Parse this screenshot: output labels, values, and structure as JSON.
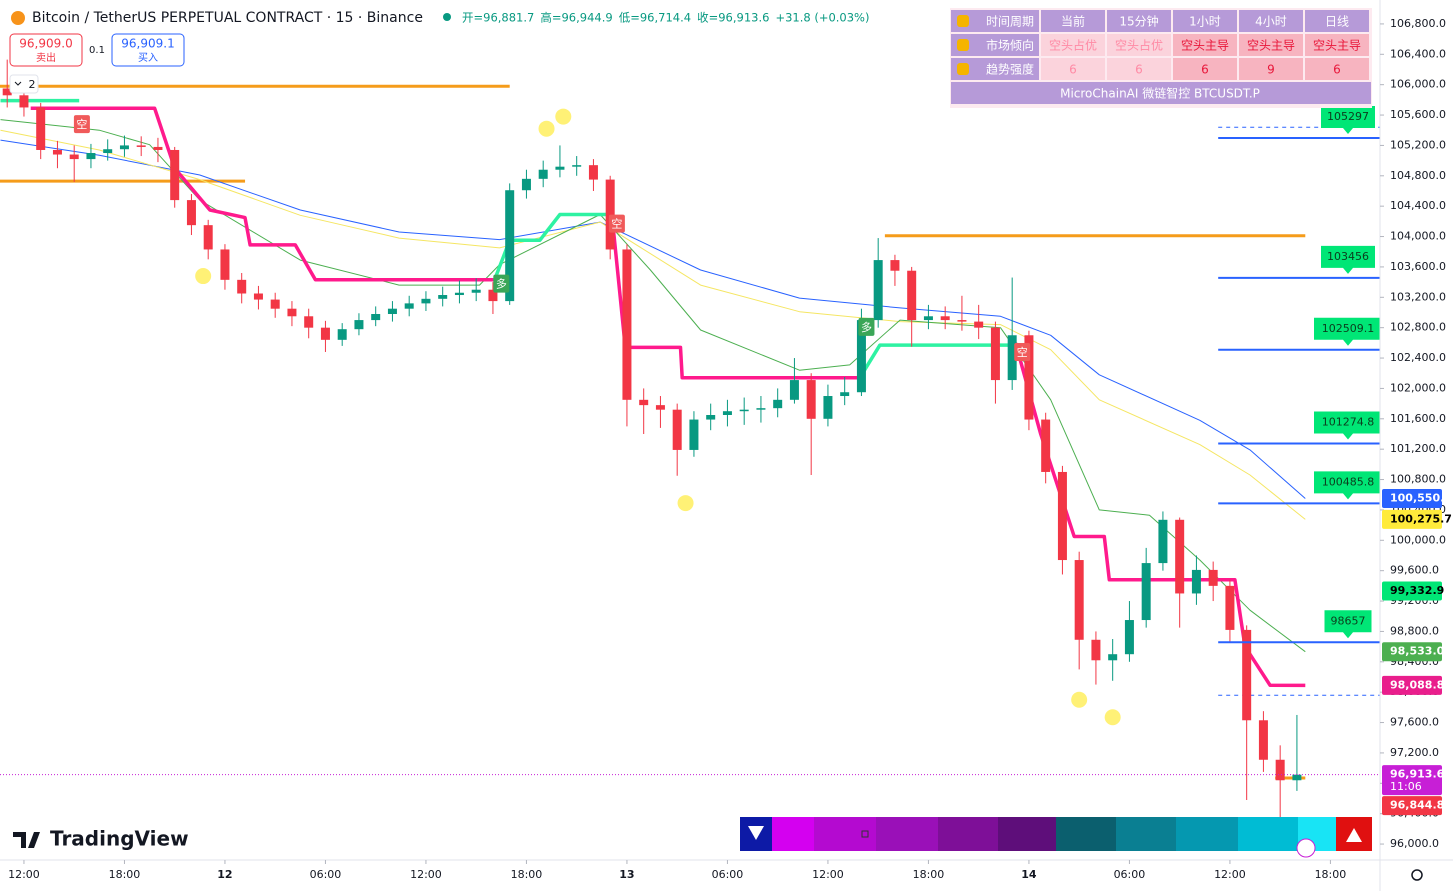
{
  "chart_data": {
    "type": "candlestick",
    "xlim": [
      -1.43,
      80.96
    ],
    "ylim": [
      95790,
      107115
    ],
    "xticks": [
      {
        "value": 0,
        "label": "12:00"
      },
      {
        "value": 6,
        "label": "18:00"
      },
      {
        "value": 12,
        "label": "12"
      },
      {
        "value": 18,
        "label": "06:00"
      },
      {
        "value": 24,
        "label": "12:00"
      },
      {
        "value": 30,
        "label": "18:00"
      },
      {
        "value": 36,
        "label": "13"
      },
      {
        "value": 42,
        "label": "06:00"
      },
      {
        "value": 48,
        "label": "12:00"
      },
      {
        "value": 54,
        "label": "18:00"
      },
      {
        "value": 60,
        "label": "14"
      },
      {
        "value": 66,
        "label": "06:00"
      },
      {
        "value": 72,
        "label": "12:00"
      },
      {
        "value": 78,
        "label": "18:00"
      }
    ],
    "yticks": [
      {
        "value": 96000,
        "label": "96,000.0"
      },
      {
        "value": 96400,
        "label": "96,400.0"
      },
      {
        "value": 96800,
        "label": "96,800.0"
      },
      {
        "value": 97200,
        "label": "97,200.0"
      },
      {
        "value": 97600,
        "label": "97,600.0"
      },
      {
        "value": 98000,
        "label": "98,000.0"
      },
      {
        "value": 98400,
        "label": "98,400.0"
      },
      {
        "value": 98800,
        "label": "98,800.0"
      },
      {
        "value": 99200,
        "label": "99,200.0"
      },
      {
        "value": 99600,
        "label": "99,600.0"
      },
      {
        "value": 100000,
        "label": "100,000.0"
      },
      {
        "value": 100400,
        "label": "100,400.0"
      },
      {
        "value": 100800,
        "label": "100,800.0"
      },
      {
        "value": 101200,
        "label": "101,200.0"
      },
      {
        "value": 101600,
        "label": "101,600.0"
      },
      {
        "value": 102000,
        "label": "102,000.0"
      },
      {
        "value": 102400,
        "label": "102,400.0"
      },
      {
        "value": 102800,
        "label": "102,800.0"
      },
      {
        "value": 103200,
        "label": "103,200.0"
      },
      {
        "value": 103600,
        "label": "103,600.0"
      },
      {
        "value": 104000,
        "label": "104,000.0"
      },
      {
        "value": 104400,
        "label": "104,400.0"
      },
      {
        "value": 104800,
        "label": "104,800.0"
      },
      {
        "value": 105200,
        "label": "105,200.0"
      },
      {
        "value": 105600,
        "label": "105,600.0"
      },
      {
        "value": 106000,
        "label": "106,000.0"
      },
      {
        "value": 106400,
        "label": "106,400.0"
      },
      {
        "value": 106800,
        "label": "106,800.0"
      }
    ],
    "up_color": "#089981",
    "down_color": "#f23645",
    "candles": {
      "x": [
        -1,
        0,
        1,
        2,
        3,
        4,
        5,
        6,
        7,
        8,
        9,
        10,
        11,
        12,
        13,
        14,
        15,
        16,
        17,
        18,
        19,
        20,
        21,
        22,
        23,
        24,
        25,
        26,
        27,
        28,
        29,
        30,
        31,
        32,
        33,
        34,
        35,
        36,
        37,
        38,
        39,
        40,
        41,
        42,
        43,
        44,
        45,
        46,
        47,
        48,
        49,
        50,
        51,
        52,
        53,
        54,
        55,
        56,
        57,
        58,
        59,
        60,
        61,
        62,
        63,
        64,
        65,
        66,
        67,
        68,
        69,
        70,
        71,
        72,
        73,
        74,
        75,
        76
      ],
      "open": [
        105950,
        105860,
        105700,
        105140,
        105080,
        105020,
        105100,
        105150,
        105200,
        105180,
        105140,
        104480,
        104150,
        103830,
        103430,
        103250,
        103170,
        103050,
        102950,
        102800,
        102640,
        102780,
        102900,
        102980,
        103050,
        103120,
        103180,
        103230,
        103260,
        103300,
        103150,
        104610,
        104760,
        104880,
        104920,
        104940,
        104750,
        103830,
        101850,
        101780,
        101720,
        101190,
        101590,
        101650,
        101700,
        101720,
        101740,
        101850,
        102110,
        101600,
        101900,
        101950,
        102900,
        103690,
        103550,
        102900,
        102950,
        102900,
        102880,
        102800,
        102110,
        102700,
        101590,
        100900,
        99740,
        98690,
        98420,
        98500,
        98950,
        99700,
        100270,
        99300,
        99610,
        99400,
        98820,
        97630,
        97110,
        96840
      ],
      "high": [
        106330,
        105950,
        105760,
        105260,
        105200,
        105220,
        105280,
        105330,
        105320,
        105300,
        105180,
        104560,
        104220,
        103900,
        103520,
        103350,
        103260,
        103150,
        103050,
        102890,
        102860,
        102990,
        103080,
        103150,
        103220,
        103280,
        103340,
        103420,
        103450,
        103400,
        104700,
        104880,
        105000,
        105200,
        105060,
        105020,
        104800,
        103900,
        102000,
        101900,
        101800,
        101700,
        101800,
        101850,
        101880,
        101900,
        102000,
        102400,
        102200,
        102050,
        102150,
        103050,
        103980,
        103760,
        103600,
        103100,
        103080,
        103220,
        103100,
        102880,
        103460,
        102760,
        101680,
        100980,
        99850,
        98800,
        98700,
        99200,
        99900,
        100380,
        100300,
        99800,
        99720,
        99480,
        98880,
        97750,
        97300,
        97700
      ],
      "low": [
        105700,
        105580,
        105020,
        104900,
        104720,
        104900,
        105000,
        105050,
        105060,
        104980,
        104380,
        104020,
        103700,
        103300,
        103120,
        103040,
        102930,
        102820,
        102660,
        102480,
        102560,
        102700,
        102820,
        102880,
        102950,
        103020,
        103080,
        103120,
        103150,
        102980,
        103100,
        104500,
        104650,
        104780,
        104800,
        104600,
        103700,
        101500,
        101400,
        101480,
        100850,
        101100,
        101450,
        101500,
        101520,
        101550,
        101620,
        101800,
        100860,
        101500,
        101780,
        101900,
        102800,
        103350,
        102550,
        102780,
        102780,
        102760,
        102650,
        101800,
        101980,
        101450,
        100750,
        99550,
        98300,
        98100,
        98150,
        98400,
        98850,
        99600,
        98850,
        99150,
        99200,
        98650,
        96580,
        96950,
        95990,
        96700
      ],
      "close": [
        105860,
        105700,
        105140,
        105080,
        105020,
        105100,
        105150,
        105200,
        105180,
        105140,
        104480,
        104150,
        103830,
        103430,
        103250,
        103170,
        103050,
        102950,
        102800,
        102640,
        102780,
        102900,
        102980,
        103050,
        103120,
        103180,
        103230,
        103260,
        103300,
        103150,
        104610,
        104760,
        104880,
        104920,
        104940,
        104750,
        103830,
        101850,
        101780,
        101720,
        101190,
        101590,
        101650,
        101700,
        101720,
        101740,
        101850,
        102110,
        101600,
        101900,
        101950,
        102900,
        103690,
        103550,
        102900,
        102950,
        102900,
        102880,
        102800,
        102110,
        102700,
        101590,
        100900,
        99740,
        98690,
        98420,
        98500,
        98950,
        99700,
        100270,
        99300,
        99610,
        99400,
        98820,
        97630,
        97110,
        96840,
        96913.6
      ]
    },
    "series": [
      {
        "color": "#2962ff",
        "width": 1,
        "x": [
          -1.4,
          4.5,
          10.5,
          16.5,
          22.4,
          28.4,
          34.4,
          40.4,
          46.3,
          52.3,
          58.3,
          61.3,
          64.2,
          70.2,
          73.2,
          76.5
        ],
        "values": [
          105270,
          105070,
          104810,
          104350,
          104060,
          103960,
          104190,
          103560,
          103190,
          103060,
          102950,
          102700,
          102180,
          101580,
          101190,
          100550.4
        ]
      },
      {
        "color": "#f5e663",
        "width": 1,
        "x": [
          -1.4,
          4.5,
          10.5,
          16.5,
          22.4,
          28.4,
          34.4,
          40.4,
          46.3,
          52.3,
          58.3,
          61.3,
          64.2,
          70.2,
          73.2,
          76.5
        ],
        "values": [
          105400,
          105140,
          104750,
          104280,
          103980,
          103850,
          104190,
          103360,
          103010,
          102880,
          102840,
          102510,
          101850,
          101260,
          100860,
          100275.7
        ]
      },
      {
        "color": "#4caf50",
        "width": 1,
        "x": [
          -1.4,
          4.5,
          7.5,
          10.5,
          16.5,
          22.4,
          27.2,
          28.4,
          34.4,
          37.4,
          40.4,
          46.3,
          49.3,
          52.3,
          58.3,
          61.3,
          64.2,
          67.2,
          70.2,
          73.2,
          76.5
        ],
        "values": [
          105540,
          105400,
          105210,
          104480,
          103690,
          103360,
          103360,
          103630,
          104290,
          103560,
          102770,
          102240,
          102310,
          102900,
          102800,
          101850,
          100400,
          100330,
          99740,
          99080,
          98533.0
        ]
      },
      {
        "color": "#ff1a8c",
        "width": 3.5,
        "x": [
          0.4,
          3.3,
          7.8,
          9,
          11.1,
          13.2,
          13.5,
          16.2,
          17.4,
          28.1,
          30,
          35.1,
          35.9,
          39.2,
          39.3,
          49.9,
          55,
          59.2,
          60.7,
          62.7,
          64.5,
          64.8,
          72.3,
          72.9,
          74.4,
          76.5
        ],
        "values": [
          105690,
          105690,
          105690,
          104900,
          104350,
          104250,
          103890,
          103890,
          103430,
          103430,
          null,
          104290,
          102540,
          102540,
          102140,
          102140,
          null,
          102600,
          101400,
          100050,
          100050,
          99480,
          99480,
          98600,
          98090,
          98088.8
        ]
      },
      {
        "color": "#2ef2a2",
        "width": 3.5,
        "x": [
          -1.4,
          3.3,
          20,
          28.1,
          29,
          30.8,
          32,
          35.1,
          40,
          49.9,
          51.1,
          58.9
        ],
        "values": [
          105790,
          105790,
          null,
          103430,
          103950,
          103950,
          104290,
          104290,
          null,
          102140,
          102570,
          102570
        ]
      }
    ],
    "segments": [
      {
        "color": "#f59c1a",
        "value": 105980,
        "x": [
          -1.43,
          29.0
        ]
      },
      {
        "color": "#f59c1a",
        "value": 104730,
        "x": [
          -1.43,
          13.2
        ]
      },
      {
        "color": "#f59c1a",
        "value": 104010,
        "x": [
          51.4,
          76.5
        ]
      },
      {
        "color": "#f59c1a",
        "value": 96870,
        "x": [
          74.7,
          76.5
        ]
      }
    ],
    "level_color": "#2962ff",
    "level_x": 71.3,
    "levels": [
      105297,
      103456,
      102509.1,
      101274.8,
      100485.8,
      98657
    ],
    "dashed_levels": [
      105440,
      97960
    ],
    "dots": {
      "color": "#fff176",
      "x": [
        31.2,
        32.2,
        10.7,
        39.5,
        63,
        65
      ],
      "values": [
        105420,
        105580,
        103480,
        100490,
        97900,
        97670
      ]
    },
    "signals": [
      {
        "label": "空",
        "x": 3.46,
        "value": 105480,
        "color": "#f05a5a"
      },
      {
        "label": "多",
        "x": 28.5,
        "value": 103380,
        "color": "#3aa657"
      },
      {
        "label": "空",
        "x": 35.4,
        "value": 104170,
        "color": "#f05a5a"
      },
      {
        "label": "多",
        "x": 50.3,
        "value": 102810,
        "color": "#3aa657"
      },
      {
        "label": "空",
        "x": 59.6,
        "value": 102480,
        "color": "#f05a5a"
      }
    ],
    "axis_tags": [
      {
        "value": 100550.4,
        "label": "100,550.4",
        "color": "#2962ff",
        "text_color": "#ffffff"
      },
      {
        "value": 100275.7,
        "label": "100,275.7",
        "color": "#ffeb3b",
        "text_color": "#000000"
      },
      {
        "value": 99332.9,
        "label": "99,332.9",
        "color": "#00e676",
        "text_color": "#000000"
      },
      {
        "value": 98533.0,
        "label": "98,533.0",
        "color": "#4caf50",
        "text_color": "#ffffff"
      },
      {
        "value": 98088.8,
        "label": "98,088.8",
        "color": "#e91e8c",
        "text_color": "#ffffff"
      },
      {
        "value": 96913.6,
        "label": "96,913.6",
        "countdown": "11:06",
        "color": "#c71fd6",
        "text_color": "#ffffff"
      },
      {
        "value": 96844.8,
        "label": "96,844.8",
        "color": "#f23645",
        "text_color": "#ffffff"
      }
    ]
  },
  "header": {
    "symbol": "Bitcoin / TetherUS PERPETUAL CONTRACT · 15 · Binance",
    "ohlc": [
      "开=96,881.7",
      "高=96,944.9",
      "低=96,714.4",
      "收=96,913.6",
      "+31.8 (+0.03%)"
    ],
    "sell_price": "96,909.0",
    "sell_label": "卖出",
    "spread": "0.1",
    "buy_price": "96,909.1",
    "buy_label": "买入",
    "indicator_count": "2"
  },
  "info_table": {
    "rows": [
      [
        "时间周期",
        "当前",
        "15分钟",
        "1小时",
        "4小时",
        "日线"
      ],
      [
        "市场倾向",
        "空头占优",
        "空头占优",
        "空头主导",
        "空头主导",
        "空头主导"
      ],
      [
        "趋势强度",
        "6",
        "6",
        "6",
        "9",
        "6"
      ]
    ],
    "footer": "MicroChainAI 微链智控 BTCUSDT.P"
  },
  "logo": "TradingView"
}
